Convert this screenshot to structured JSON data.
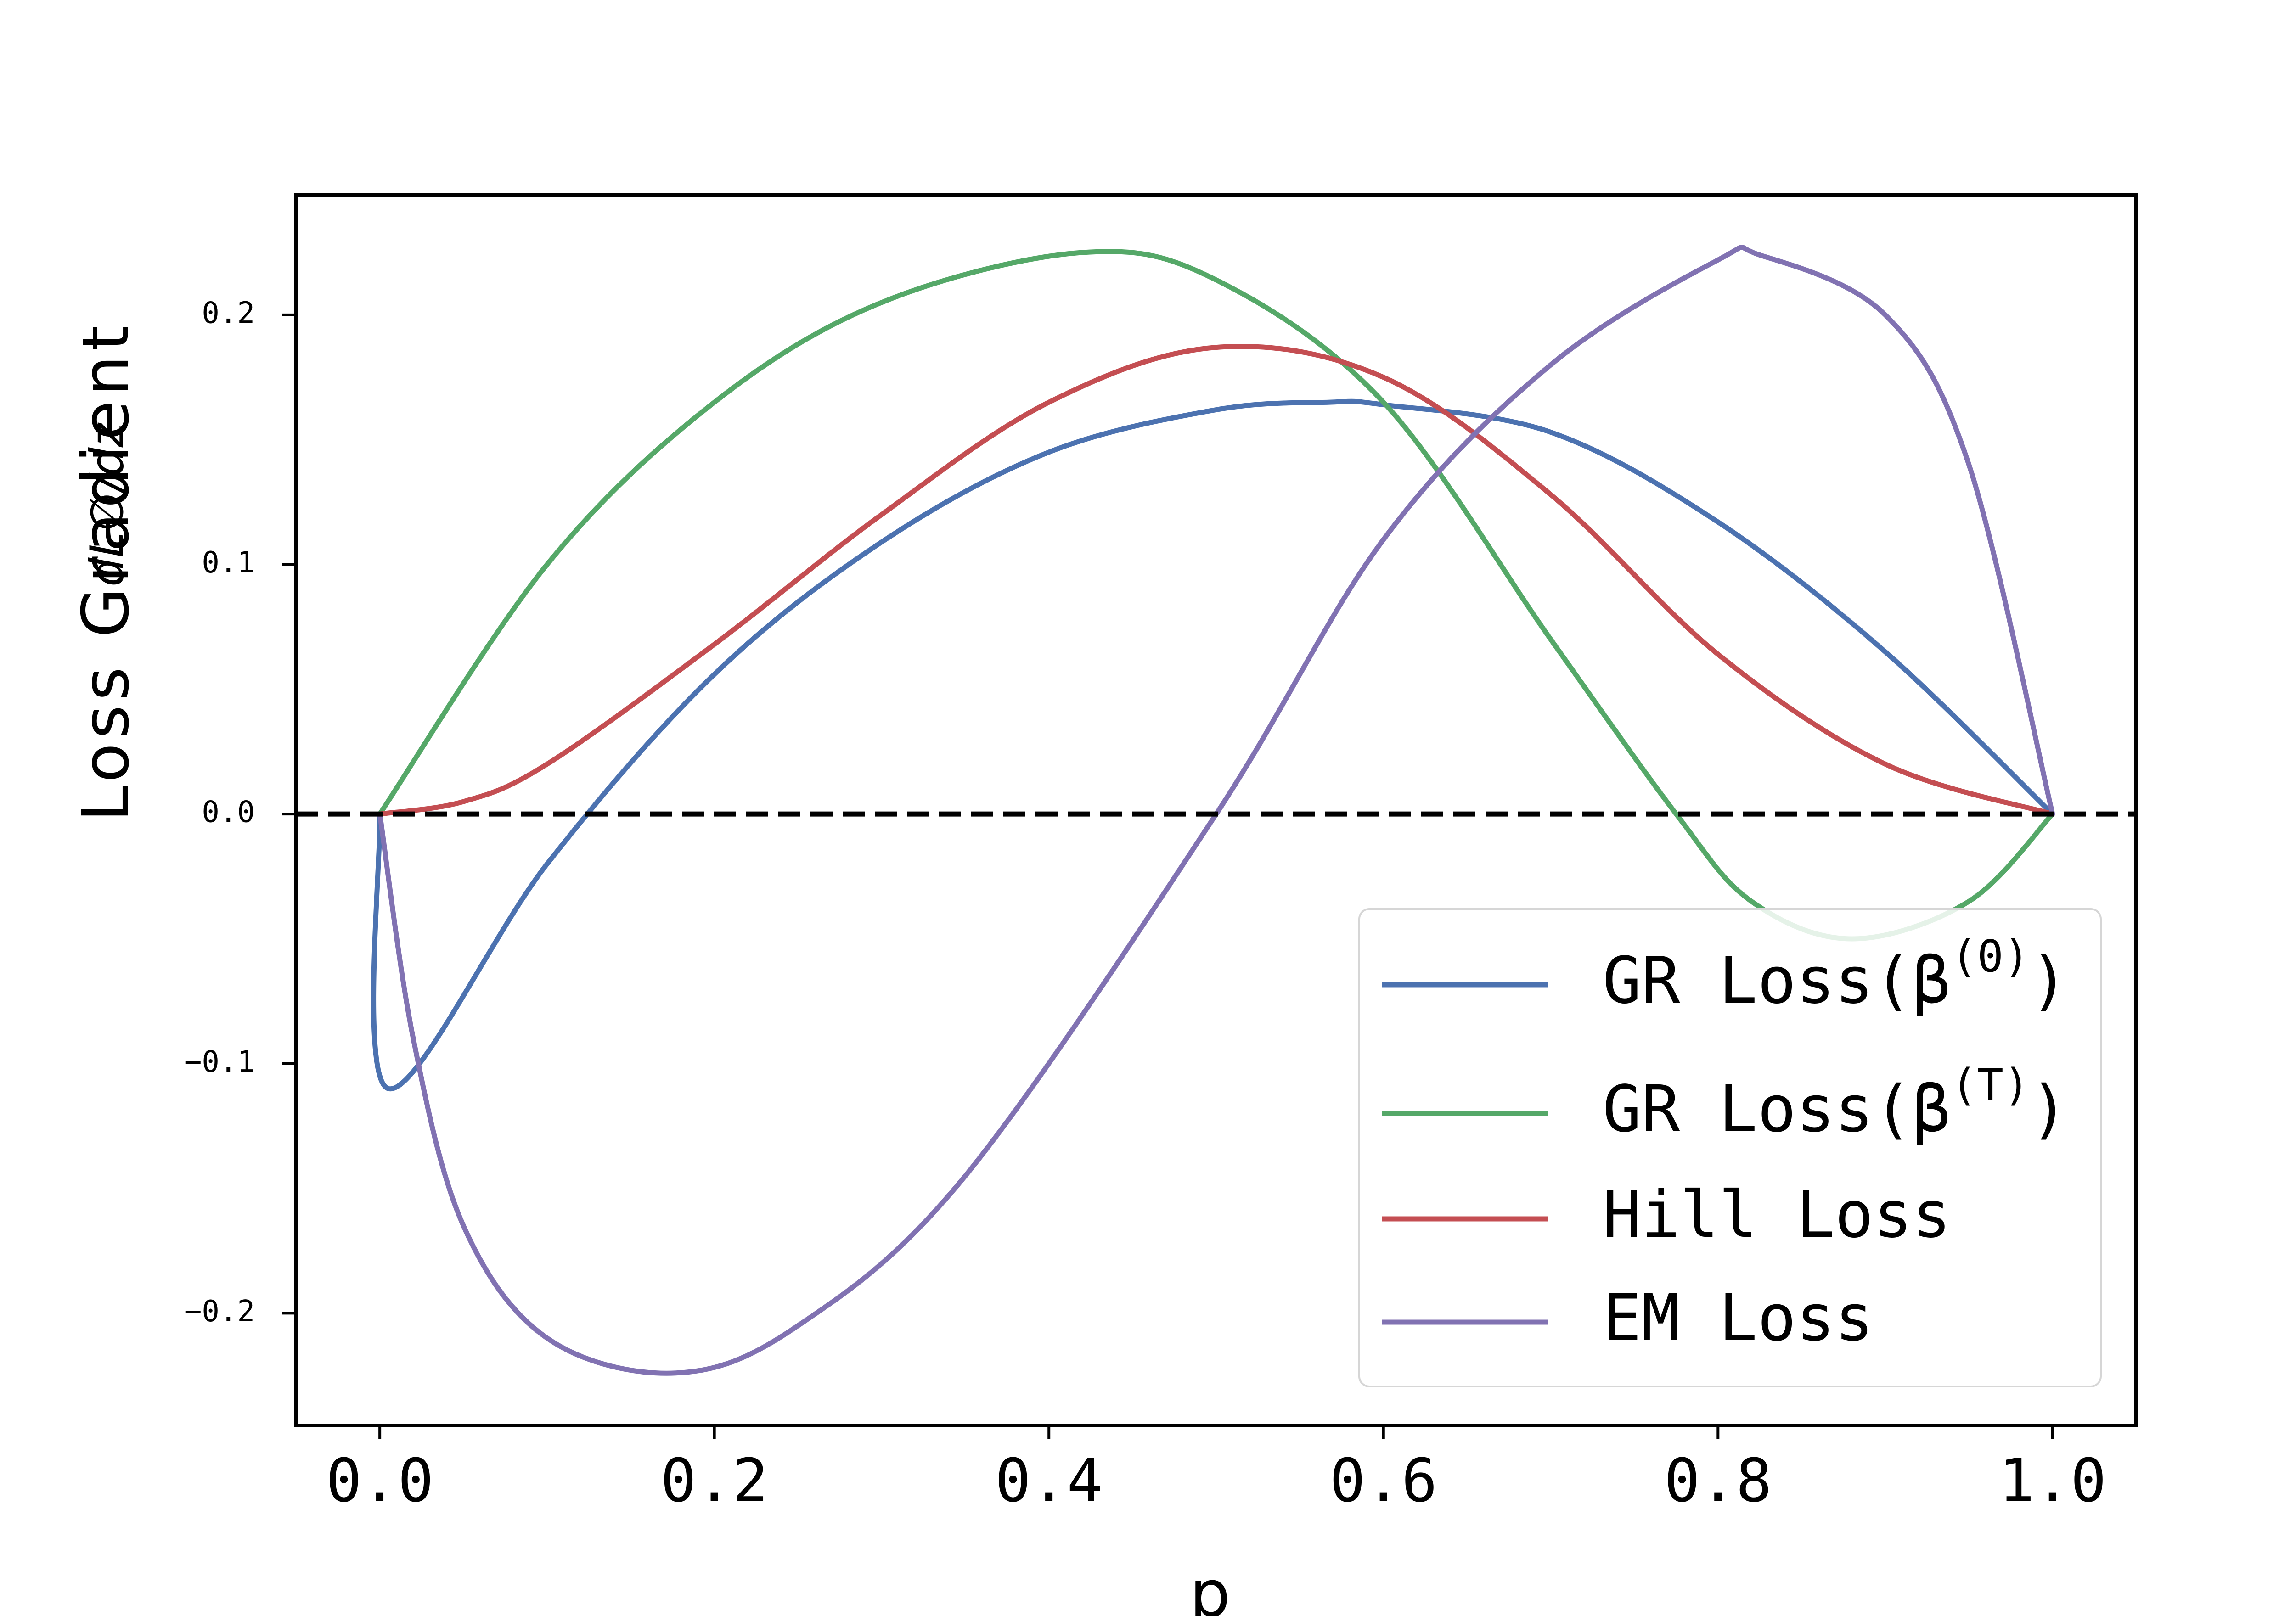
{
  "chart_data": {
    "type": "line",
    "title": "",
    "xlabel": "p",
    "ylabel": "Loss Gradient",
    "ylabel_math": "dL∅/dz",
    "xlim": [
      -0.05,
      1.05
    ],
    "ylim": [
      -0.245,
      0.248
    ],
    "xticks": [
      0.0,
      0.2,
      0.4,
      0.6,
      0.8,
      1.0
    ],
    "xtick_labels": [
      "0.0",
      "0.2",
      "0.4",
      "0.6",
      "0.8",
      "1.0"
    ],
    "yticks": [
      -0.2,
      -0.1,
      0.0,
      0.1,
      0.2
    ],
    "ytick_labels": [
      "−0.2",
      "−0.1",
      "0.0",
      "0.1",
      "0.2"
    ],
    "grid": false,
    "legend_position": "bottom-right",
    "reference_line": {
      "y": 0.0,
      "style": "dashed",
      "color": "#000000"
    },
    "series": [
      {
        "name": "GR Loss(β(0))",
        "label_base": "GR Loss(β",
        "label_sup": "(0)",
        "label_tail": ")",
        "color": "#4c72b0",
        "x": [
          0.0,
          0.005,
          0.1,
          0.2,
          0.3,
          0.4,
          0.5,
          0.567,
          0.6,
          0.7,
          0.8,
          0.9,
          1.0
        ],
        "y": [
          0.0,
          -0.11,
          -0.02,
          0.056,
          0.109,
          0.145,
          0.162,
          0.165,
          0.164,
          0.153,
          0.117,
          0.065,
          0.0
        ]
      },
      {
        "name": "GR Loss(β(T))",
        "label_base": "GR Loss(β",
        "label_sup": "(T)",
        "label_tail": ")",
        "color": "#55a868",
        "x": [
          0.0,
          0.1,
          0.2,
          0.3,
          0.42,
          0.5,
          0.6,
          0.7,
          0.775,
          0.82,
          0.88,
          0.95,
          1.0
        ],
        "y": [
          0.0,
          0.1,
          0.165,
          0.205,
          0.225,
          0.214,
          0.165,
          0.07,
          0.0,
          -0.035,
          -0.05,
          -0.035,
          0.0
        ]
      },
      {
        "name": "Hill Loss",
        "label_base": "Hill Loss",
        "label_sup": "",
        "label_tail": "",
        "color": "#c44e52",
        "x": [
          0.0,
          0.05,
          0.1,
          0.2,
          0.3,
          0.4,
          0.5,
          0.6,
          0.7,
          0.8,
          0.9,
          1.0
        ],
        "y": [
          0.0,
          0.005,
          0.02,
          0.068,
          0.12,
          0.165,
          0.187,
          0.175,
          0.128,
          0.064,
          0.02,
          0.0
        ]
      },
      {
        "name": "EM Loss",
        "label_base": "EM Loss",
        "label_sup": "",
        "label_tail": "",
        "color": "#8172b2",
        "x": [
          0.0,
          0.02,
          0.05,
          0.1,
          0.177,
          0.25,
          0.35,
          0.5,
          0.6,
          0.7,
          0.8,
          0.825,
          0.9,
          0.95,
          1.0
        ],
        "y": [
          0.0,
          -0.09,
          -0.165,
          -0.21,
          -0.224,
          -0.205,
          -0.145,
          0.0,
          0.11,
          0.18,
          0.222,
          0.224,
          0.2,
          0.14,
          0.0
        ]
      }
    ]
  }
}
